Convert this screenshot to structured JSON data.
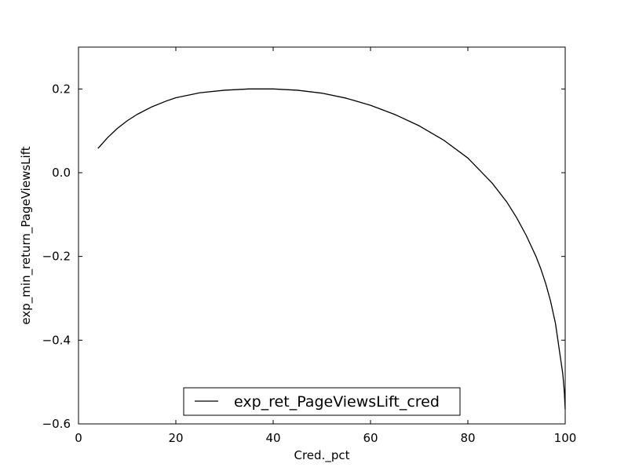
{
  "chart_data": {
    "type": "line",
    "xlabel": "Cred._pct",
    "ylabel": "exp_min_return_PageViewsLift",
    "xlim": [
      0,
      100
    ],
    "ylim": [
      -0.6,
      0.3
    ],
    "x_ticks": [
      0,
      20,
      40,
      60,
      80,
      100
    ],
    "x_tick_labels": [
      "0",
      "20",
      "40",
      "60",
      "80",
      "100"
    ],
    "y_ticks": [
      -0.6,
      -0.4,
      -0.2,
      0.0,
      0.2
    ],
    "y_tick_labels": [
      "−0.6",
      "−0.4",
      "−0.2",
      "0.0",
      "0.2"
    ],
    "grid": false,
    "legend": {
      "position": "lower-center"
    },
    "series": [
      {
        "name": "exp_ret_PageViewsLift_cred",
        "color": "#000000",
        "x": [
          4,
          6,
          8,
          10,
          12,
          15,
          18,
          20,
          25,
          30,
          35,
          40,
          45,
          50,
          55,
          60,
          65,
          70,
          75,
          80,
          85,
          88,
          90,
          92,
          94,
          95,
          96,
          97,
          98,
          99,
          99.5,
          99.8,
          100
        ],
        "y": [
          0.058,
          0.084,
          0.106,
          0.124,
          0.139,
          0.157,
          0.171,
          0.179,
          0.191,
          0.197,
          0.2,
          0.2,
          0.197,
          0.19,
          0.178,
          0.161,
          0.139,
          0.112,
          0.078,
          0.035,
          -0.025,
          -0.07,
          -0.107,
          -0.15,
          -0.2,
          -0.23,
          -0.265,
          -0.307,
          -0.36,
          -0.44,
          -0.48,
          -0.52,
          -0.565
        ]
      }
    ]
  }
}
